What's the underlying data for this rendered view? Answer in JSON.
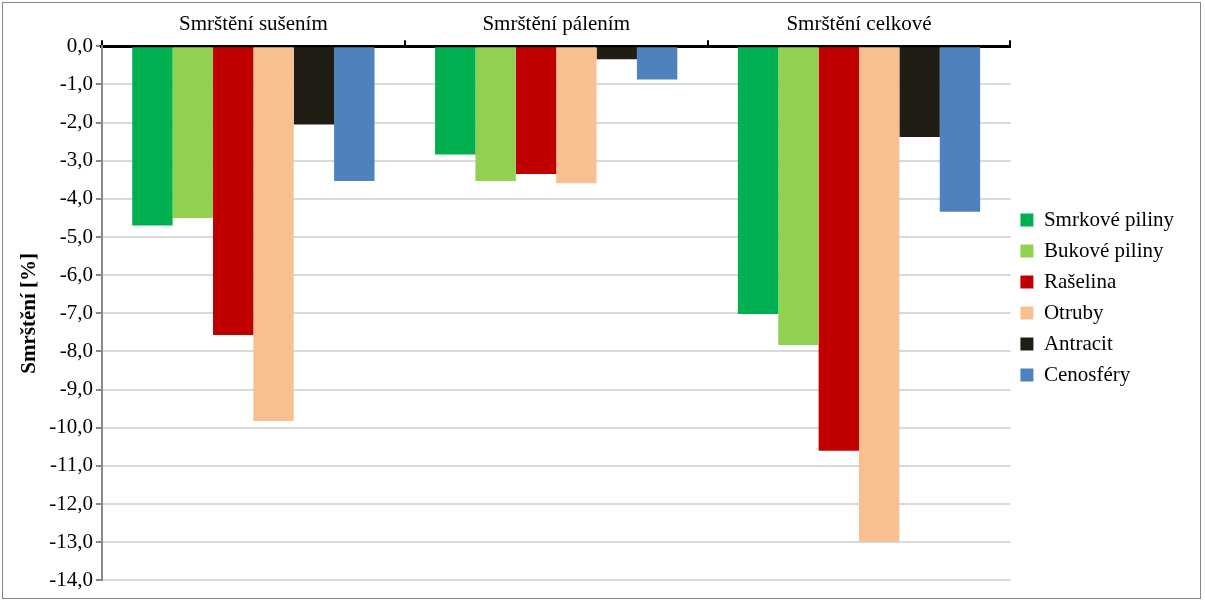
{
  "chart_data": {
    "type": "bar",
    "ylabel": "Smrštění [%]",
    "categories": [
      "Smrštění sušením",
      "Smrštění pálením",
      "Smrštění celkové"
    ],
    "series": [
      {
        "name": "Smrkové piliny",
        "color": "#00b050",
        "values": [
          -4.7,
          -2.84,
          -7.02
        ]
      },
      {
        "name": "Bukové piliny",
        "color": "#92d050",
        "values": [
          -4.5,
          -3.53,
          -7.83
        ]
      },
      {
        "name": "Rašelina",
        "color": "#c00000",
        "values": [
          -7.57,
          -3.35,
          -10.6
        ]
      },
      {
        "name": "Otruby",
        "color": "#f8c090",
        "values": [
          -9.82,
          -3.59,
          -12.99
        ]
      },
      {
        "name": "Antracit",
        "color": "#201e14",
        "values": [
          -2.05,
          -0.34,
          -2.38
        ]
      },
      {
        "name": "Cenosféry",
        "color": "#4f81bd",
        "values": [
          -3.53,
          -0.87,
          -4.34
        ]
      }
    ],
    "ylim": [
      -14,
      0
    ],
    "yticks": [
      {
        "value": 0,
        "label": "0,0"
      },
      {
        "value": -1,
        "label": "-1,0"
      },
      {
        "value": -2,
        "label": "-2,0"
      },
      {
        "value": -3,
        "label": "-3,0"
      },
      {
        "value": -4,
        "label": "-4,0"
      },
      {
        "value": -5,
        "label": "-5,0"
      },
      {
        "value": -6,
        "label": "-6,0"
      },
      {
        "value": -7,
        "label": "-7,0"
      },
      {
        "value": -8,
        "label": "-8,0"
      },
      {
        "value": -9,
        "label": "-9,0"
      },
      {
        "value": -10,
        "label": "-10,0"
      },
      {
        "value": -11,
        "label": "-11,0"
      },
      {
        "value": -12,
        "label": "-12,0"
      },
      {
        "value": -13,
        "label": "-13,0"
      },
      {
        "value": -14,
        "label": "-14,0"
      }
    ],
    "grid": "y",
    "legend": "right"
  }
}
